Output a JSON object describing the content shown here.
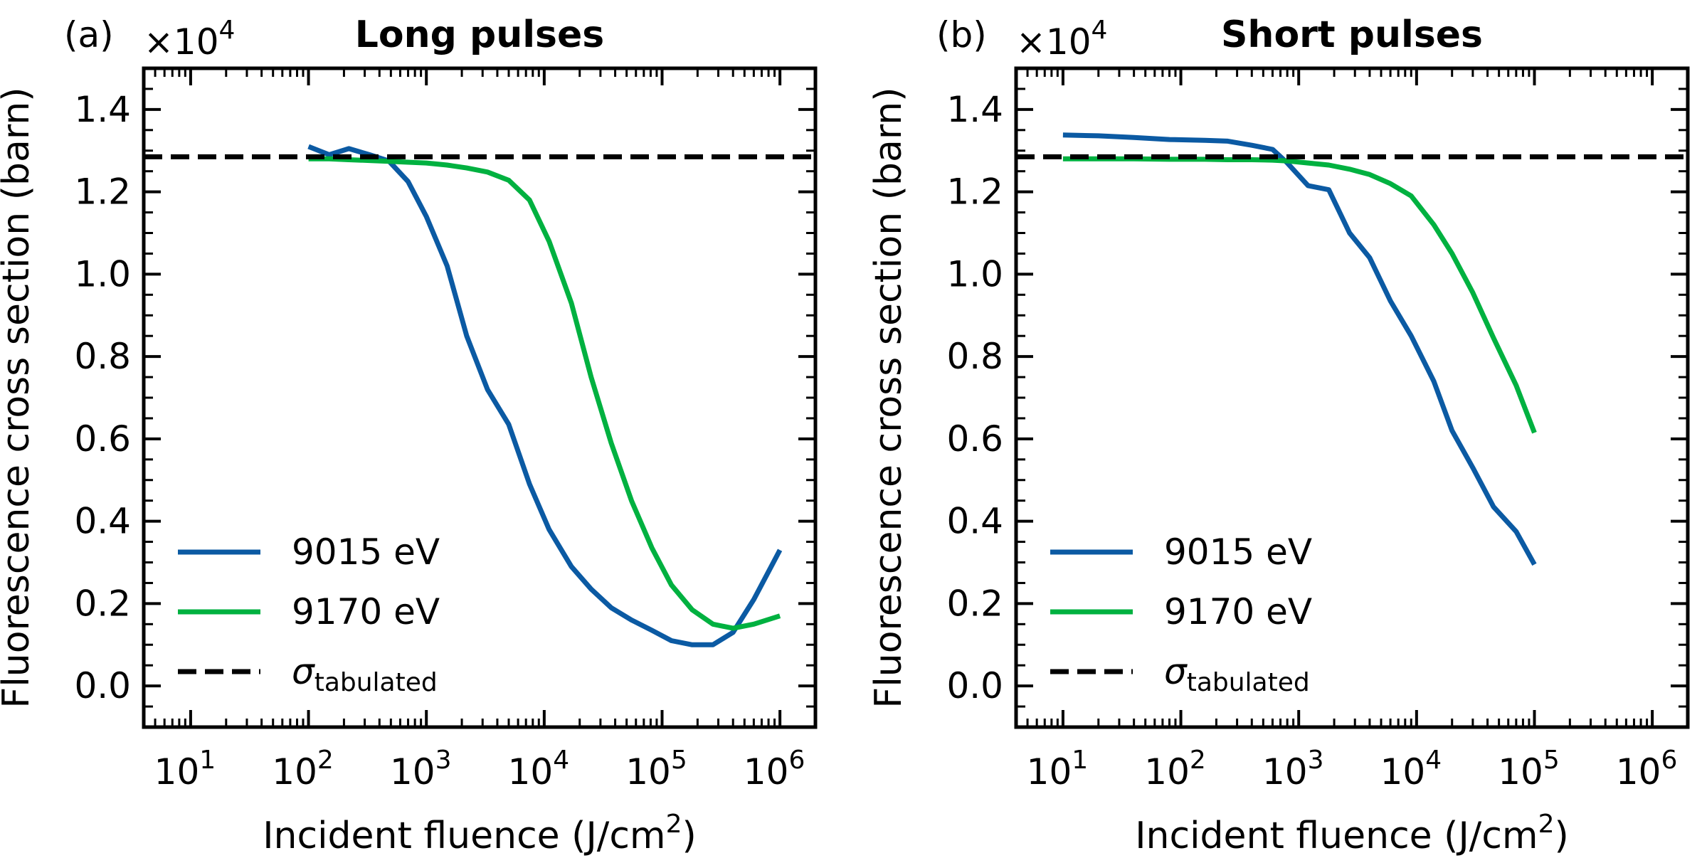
{
  "chart_data": [
    {
      "type": "line",
      "panel_label": "(a)",
      "title": "Long pulses",
      "xlabel": "Incident fluence (J/cm",
      "xlabel_sup": "2",
      "xlabel_suffix": ")",
      "ylabel": "Fluorescence cross section (barn)",
      "y_multiplier_base": "×10",
      "y_multiplier_exp": "4",
      "xscale": "log",
      "xlim": [
        4,
        2000000
      ],
      "ylim": [
        -0.1,
        1.5
      ],
      "xticks": [
        {
          "value": 10,
          "base": "10",
          "exp": "1"
        },
        {
          "value": 100,
          "base": "10",
          "exp": "2"
        },
        {
          "value": 1000,
          "base": "10",
          "exp": "3"
        },
        {
          "value": 10000,
          "base": "10",
          "exp": "4"
        },
        {
          "value": 100000,
          "base": "10",
          "exp": "5"
        },
        {
          "value": 1000000,
          "base": "10",
          "exp": "6"
        }
      ],
      "yticks": [
        {
          "value": 0.0,
          "label": "0.0"
        },
        {
          "value": 0.2,
          "label": "0.2"
        },
        {
          "value": 0.4,
          "label": "0.4"
        },
        {
          "value": 0.6,
          "label": "0.6"
        },
        {
          "value": 0.8,
          "label": "0.8"
        },
        {
          "value": 1.0,
          "label": "1.0"
        },
        {
          "value": 1.2,
          "label": "1.2"
        },
        {
          "value": 1.4,
          "label": "1.4"
        }
      ],
      "series": [
        {
          "name": "9015 eV",
          "color": "#0b5aa3",
          "x": [
            100,
            150,
            220,
            330,
            480,
            700,
            1000,
            1500,
            2200,
            3300,
            5000,
            7500,
            11000,
            17000,
            25000,
            37000,
            55000,
            82000,
            120000,
            180000,
            270000,
            400000,
            600000,
            1000000
          ],
          "y": [
            1.31,
            1.29,
            1.305,
            1.29,
            1.275,
            1.225,
            1.14,
            1.02,
            0.85,
            0.72,
            0.635,
            0.49,
            0.38,
            0.29,
            0.235,
            0.19,
            0.16,
            0.135,
            0.11,
            0.1,
            0.1,
            0.13,
            0.21,
            0.33
          ]
        },
        {
          "name": "9170 eV",
          "color": "#00b140",
          "x": [
            100,
            150,
            220,
            330,
            480,
            700,
            1000,
            1500,
            2200,
            3300,
            5000,
            7500,
            11000,
            17000,
            25000,
            37000,
            55000,
            82000,
            120000,
            180000,
            270000,
            400000,
            600000,
            1000000
          ],
          "y": [
            1.28,
            1.28,
            1.278,
            1.276,
            1.274,
            1.272,
            1.27,
            1.265,
            1.258,
            1.248,
            1.228,
            1.18,
            1.08,
            0.93,
            0.75,
            0.59,
            0.45,
            0.335,
            0.245,
            0.185,
            0.15,
            0.14,
            0.15,
            0.17
          ]
        },
        {
          "name": "σ",
          "name_sub": "tabulated",
          "color": "#000000",
          "dashed": true,
          "x": [
            4,
            2000000
          ],
          "y": [
            1.285,
            1.285
          ]
        }
      ]
    },
    {
      "type": "line",
      "panel_label": "(b)",
      "title": "Short pulses",
      "xlabel": "Incident fluence (J/cm",
      "xlabel_sup": "2",
      "xlabel_suffix": ")",
      "ylabel": "Fluorescence cross section (barn)",
      "y_multiplier_base": "×10",
      "y_multiplier_exp": "4",
      "xscale": "log",
      "xlim": [
        4,
        2000000
      ],
      "ylim": [
        -0.1,
        1.5
      ],
      "xticks": [
        {
          "value": 10,
          "base": "10",
          "exp": "1"
        },
        {
          "value": 100,
          "base": "10",
          "exp": "2"
        },
        {
          "value": 1000,
          "base": "10",
          "exp": "3"
        },
        {
          "value": 10000,
          "base": "10",
          "exp": "4"
        },
        {
          "value": 100000,
          "base": "10",
          "exp": "5"
        },
        {
          "value": 1000000,
          "base": "10",
          "exp": "6"
        }
      ],
      "yticks": [
        {
          "value": 0.0,
          "label": "0.0"
        },
        {
          "value": 0.2,
          "label": "0.2"
        },
        {
          "value": 0.4,
          "label": "0.4"
        },
        {
          "value": 0.6,
          "label": "0.6"
        },
        {
          "value": 0.8,
          "label": "0.8"
        },
        {
          "value": 1.0,
          "label": "1.0"
        },
        {
          "value": 1.2,
          "label": "1.2"
        },
        {
          "value": 1.4,
          "label": "1.4"
        }
      ],
      "series": [
        {
          "name": "9015 eV",
          "color": "#0b5aa3",
          "x": [
            10,
            20,
            40,
            80,
            160,
            250,
            400,
            600,
            800,
            1200,
            1800,
            2700,
            4000,
            6000,
            9000,
            14000,
            20000,
            30000,
            45000,
            70000,
            100000
          ],
          "y": [
            1.338,
            1.336,
            1.332,
            1.327,
            1.325,
            1.323,
            1.313,
            1.303,
            1.27,
            1.215,
            1.205,
            1.1,
            1.04,
            0.935,
            0.85,
            0.74,
            0.62,
            0.53,
            0.435,
            0.375,
            0.295
          ]
        },
        {
          "name": "9170 eV",
          "color": "#00b140",
          "x": [
            10,
            20,
            40,
            80,
            160,
            250,
            400,
            600,
            800,
            1200,
            1800,
            2700,
            4000,
            6000,
            9000,
            14000,
            20000,
            30000,
            45000,
            70000,
            100000
          ],
          "y": [
            1.28,
            1.28,
            1.28,
            1.279,
            1.279,
            1.278,
            1.278,
            1.277,
            1.275,
            1.27,
            1.265,
            1.255,
            1.242,
            1.22,
            1.19,
            1.12,
            1.05,
            0.955,
            0.845,
            0.73,
            0.615
          ]
        },
        {
          "name": "σ",
          "name_sub": "tabulated",
          "color": "#000000",
          "dashed": true,
          "x": [
            4,
            2000000
          ],
          "y": [
            1.285,
            1.285
          ]
        }
      ]
    }
  ]
}
